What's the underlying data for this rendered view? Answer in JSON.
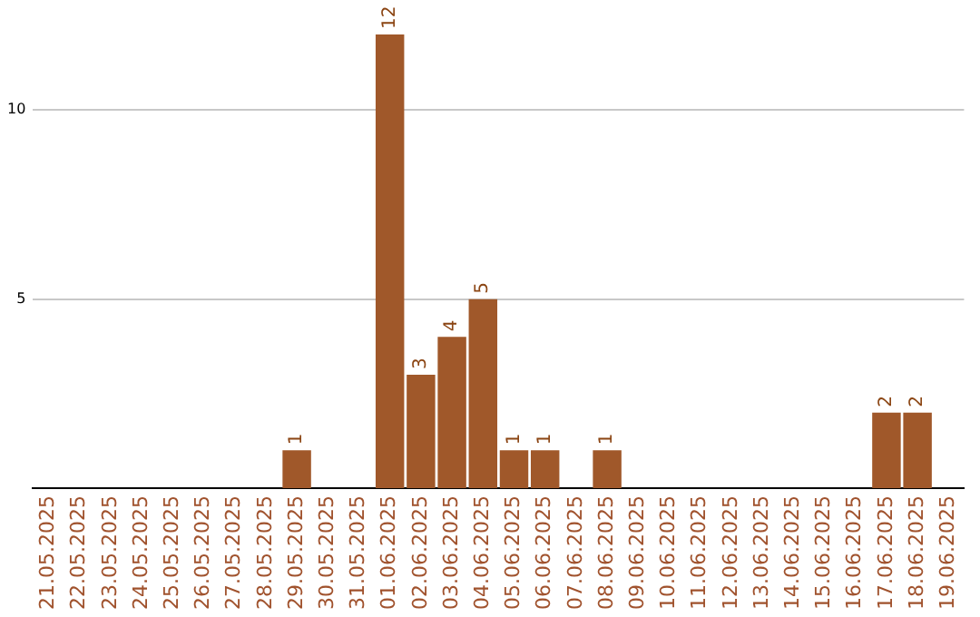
{
  "chart_data": {
    "type": "bar",
    "categories": [
      "21.05.2025",
      "22.05.2025",
      "23.05.2025",
      "24.05.2025",
      "25.05.2025",
      "26.05.2025",
      "27.05.2025",
      "28.05.2025",
      "29.05.2025",
      "30.05.2025",
      "31.05.2025",
      "01.06.2025",
      "02.06.2025",
      "03.06.2025",
      "04.06.2025",
      "05.06.2025",
      "06.06.2025",
      "07.06.2025",
      "08.06.2025",
      "09.06.2025",
      "10.06.2025",
      "11.06.2025",
      "12.06.2025",
      "13.06.2025",
      "14.06.2025",
      "15.06.2025",
      "16.06.2025",
      "17.06.2025",
      "18.06.2025",
      "19.06.2025"
    ],
    "values": [
      0,
      0,
      0,
      0,
      0,
      0,
      0,
      0,
      1,
      0,
      0,
      12,
      3,
      4,
      5,
      1,
      1,
      0,
      1,
      0,
      0,
      0,
      0,
      0,
      0,
      0,
      0,
      2,
      2,
      0
    ],
    "value_labels": [
      null,
      null,
      null,
      null,
      null,
      null,
      null,
      null,
      "1",
      null,
      null,
      "12",
      "3",
      "4",
      "5",
      "1",
      "1",
      null,
      "1",
      null,
      null,
      null,
      null,
      null,
      null,
      null,
      null,
      "2",
      "2",
      null
    ],
    "color": "#a0582a",
    "ylim": [
      0,
      12
    ],
    "yticks": [
      5,
      10
    ],
    "grid": "y",
    "legend": false
  }
}
